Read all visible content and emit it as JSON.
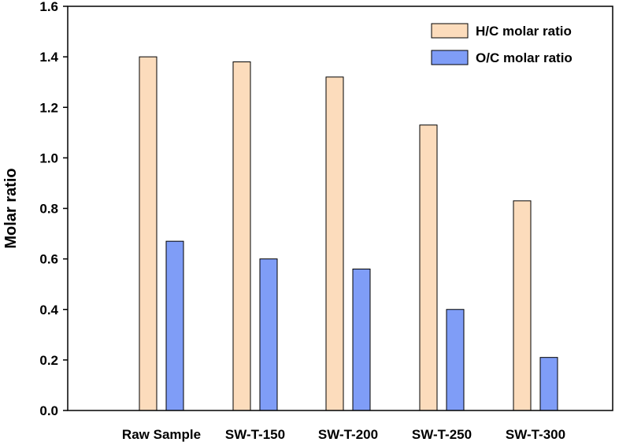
{
  "chart_data": {
    "type": "bar",
    "title": "",
    "xlabel": "",
    "ylabel": "Molar ratio",
    "ylim": [
      0,
      1.6
    ],
    "yticks": [
      "0.0",
      "0.2",
      "0.4",
      "0.6",
      "0.8",
      "1.0",
      "1.2",
      "1.4",
      "1.6"
    ],
    "grid": false,
    "legend_position": "top-right",
    "categories": [
      "Raw Sample",
      "SW-T-150",
      "SW-T-200",
      "SW-T-250",
      "SW-T-300"
    ],
    "series": [
      {
        "name": "H/C molar ratio",
        "color": "#fcdcbc",
        "values": [
          1.4,
          1.38,
          1.32,
          1.13,
          0.83
        ]
      },
      {
        "name": "O/C molar ratio",
        "color": "#7f9df7",
        "values": [
          0.67,
          0.6,
          0.56,
          0.4,
          0.21
        ]
      }
    ]
  }
}
